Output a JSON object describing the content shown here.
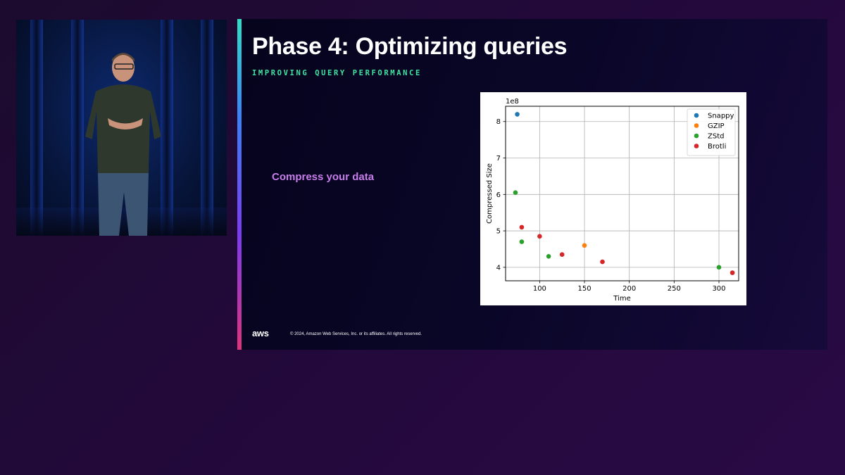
{
  "slide": {
    "title": "Phase 4: Optimizing queries",
    "subtitle": "IMPROVING QUERY PERFORMANCE",
    "bullet": "Compress your data",
    "footer_logo": "aws",
    "footer_copyright": "© 2024, Amazon Web Services, Inc. or its affiliates. All rights reserved."
  },
  "chart_data": {
    "type": "scatter",
    "title": "",
    "xlabel": "Time",
    "ylabel": "Compressed Size",
    "y_offset_label": "1e8",
    "xlim": [
      62,
      322
    ],
    "ylim": [
      3.63,
      8.42
    ],
    "xticks": [
      100,
      150,
      200,
      250,
      300
    ],
    "yticks": [
      4,
      5,
      6,
      7,
      8
    ],
    "grid": true,
    "legend_position": "top-right",
    "series": [
      {
        "name": "Snappy",
        "color": "#1f77b4",
        "points": [
          {
            "x": 75,
            "y": 8.2
          }
        ]
      },
      {
        "name": "GZIP",
        "color": "#ff7f0e",
        "points": [
          {
            "x": 150,
            "y": 4.6
          }
        ]
      },
      {
        "name": "ZStd",
        "color": "#2ca02c",
        "points": [
          {
            "x": 73,
            "y": 6.05
          },
          {
            "x": 80,
            "y": 4.7
          },
          {
            "x": 110,
            "y": 4.3
          },
          {
            "x": 300,
            "y": 4.0
          }
        ]
      },
      {
        "name": "Brotli",
        "color": "#d62728",
        "points": [
          {
            "x": 80,
            "y": 5.1
          },
          {
            "x": 100,
            "y": 4.85
          },
          {
            "x": 125,
            "y": 4.35
          },
          {
            "x": 170,
            "y": 4.15
          },
          {
            "x": 315,
            "y": 3.85
          }
        ]
      }
    ]
  }
}
